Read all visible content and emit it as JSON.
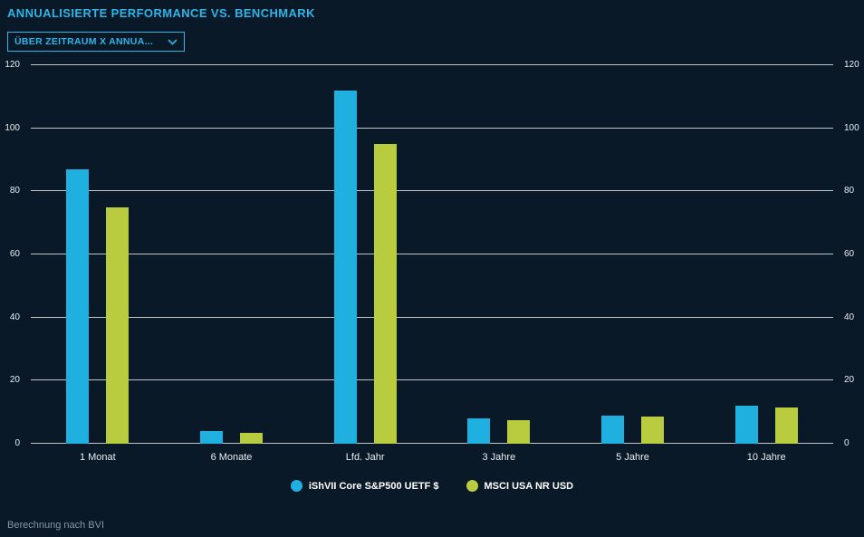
{
  "title": "ANNUALISIERTE PERFORMANCE VS. BENCHMARK",
  "dropdown": {
    "value": "ÜBER ZEITRAUM X ANNUA..."
  },
  "footer": "Berechnung nach BVI",
  "colors": {
    "background": "#0a1927",
    "accent": "#2fb5e8",
    "series1": "#1fb0e0",
    "series2": "#b9cc40",
    "grid": "#ffffff",
    "axis_text": "#e8eef2",
    "footer_text": "#8a96a1"
  },
  "chart_data": {
    "type": "bar",
    "title": "ANNUALISIERTE PERFORMANCE VS. BENCHMARK",
    "categories": [
      "1 Monat",
      "6 Monate",
      "Lfd. Jahr",
      "3 Jahre",
      "5 Jahre",
      "10 Jahre"
    ],
    "series": [
      {
        "name": "iShVII Core S&P500 UETF $",
        "color": "#1fb0e0",
        "values": [
          87,
          4,
          112,
          8,
          9,
          12
        ]
      },
      {
        "name": "MSCI USA NR USD",
        "color": "#b9cc40",
        "values": [
          75,
          3.5,
          95,
          7.5,
          8.5,
          11.5
        ]
      }
    ],
    "xlabel": "",
    "ylabel": "",
    "ylim": [
      0,
      120
    ],
    "yticks": [
      0,
      20,
      40,
      60,
      80,
      100,
      120
    ],
    "grid": true,
    "legend_position": "bottom"
  }
}
